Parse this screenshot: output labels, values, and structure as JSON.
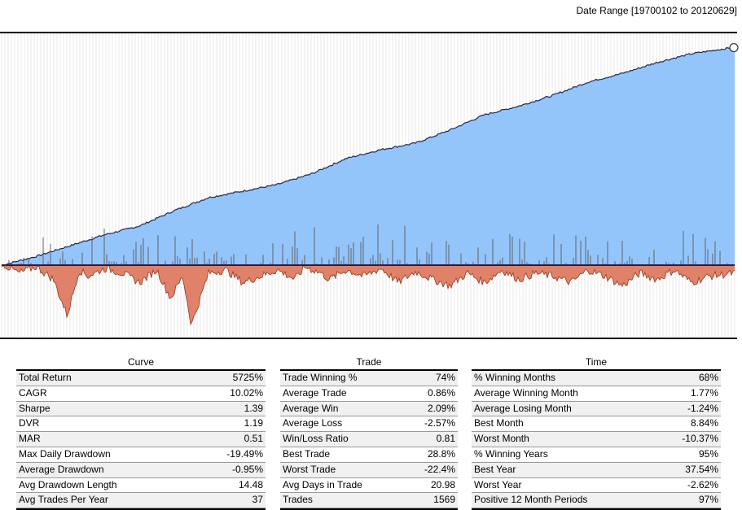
{
  "header": {
    "date_range": "Date Range [19700102 to 20120629]"
  },
  "chart_data": {
    "type": "area",
    "title": "",
    "x_start": "19700102",
    "x_end": "20120629",
    "grid": true,
    "colors": {
      "equity_fill": "#93c5fb",
      "equity_line": "#1a2a5a",
      "drawdown_fill": "#e0826a",
      "drawdown_line": "#8c3a22",
      "trade_bars": "#5a5a5a",
      "zero_line": "#2a1a4a",
      "grid_line": "#d8d8d8"
    },
    "equity_series": {
      "name": "Curve",
      "x_year": [
        1970,
        1972,
        1974,
        1976,
        1978,
        1980,
        1982,
        1984,
        1986,
        1988,
        1990,
        1992,
        1994,
        1996,
        1998,
        2000,
        2002,
        2004,
        2006,
        2008,
        2010,
        2012.5
      ],
      "y_relative": [
        0,
        0.04,
        0.09,
        0.14,
        0.18,
        0.25,
        0.31,
        0.34,
        0.37,
        0.42,
        0.49,
        0.53,
        0.56,
        0.62,
        0.69,
        0.73,
        0.78,
        0.84,
        0.88,
        0.93,
        0.97,
        1.0
      ]
    },
    "drawdown_series": {
      "name": "Drawdown",
      "x_year": [
        1970,
        1971,
        1972,
        1973,
        1973.8,
        1974.5,
        1975,
        1976,
        1977,
        1978,
        1979,
        1979.8,
        1980.5,
        1981,
        1982,
        1983,
        1984,
        1985,
        1986,
        1987,
        1987.6,
        1988.5,
        1989,
        1990,
        1991,
        1992,
        1993,
        1994,
        1995,
        1996,
        1997,
        1998,
        1999,
        2000,
        2001,
        2002,
        2003,
        2004,
        2005,
        2006,
        2007,
        2008,
        2009,
        2010,
        2011,
        2012.5
      ],
      "y_pct": [
        0,
        -3,
        -1,
        -5,
        -16.5,
        -2,
        -4,
        -1.5,
        -3,
        -6,
        -2,
        -11,
        -4,
        -19.5,
        -3,
        -2,
        -6,
        -4,
        -2,
        -5,
        -1,
        -3,
        -5,
        -2,
        -4,
        -1.5,
        -6,
        -2.5,
        -5,
        -7,
        -3,
        -6,
        -2,
        -5,
        -3,
        -4,
        -6,
        -2,
        -4,
        -7,
        -3,
        -5,
        -2,
        -6,
        -4,
        -3
      ]
    },
    "ylim_drawdown": [
      -20,
      0
    ]
  },
  "tables": [
    {
      "title": "Curve",
      "rows": [
        {
          "label": "Total Return",
          "value": "5725%"
        },
        {
          "label": "CAGR",
          "value": "10.02%"
        },
        {
          "label": "Sharpe",
          "value": "1.39"
        },
        {
          "label": "DVR",
          "value": "1.19"
        },
        {
          "label": "MAR",
          "value": "0.51"
        },
        {
          "label": "Max Daily Drawdown",
          "value": "-19.49%"
        },
        {
          "label": "Average Drawdown",
          "value": "-0.95%"
        },
        {
          "label": "Avg Drawdown Length",
          "value": "14.48"
        },
        {
          "label": "Avg Trades Per Year",
          "value": "37"
        }
      ]
    },
    {
      "title": "Trade",
      "rows": [
        {
          "label": "Trade Winning %",
          "value": "74%"
        },
        {
          "label": "Average Trade",
          "value": "0.86%"
        },
        {
          "label": "Average Win",
          "value": "2.09%"
        },
        {
          "label": "Average Loss",
          "value": "-2.57%"
        },
        {
          "label": "Win/Loss Ratio",
          "value": "0.81"
        },
        {
          "label": "Best Trade",
          "value": "28.8%"
        },
        {
          "label": "Worst Trade",
          "value": "-22.4%"
        },
        {
          "label": "Avg Days in Trade",
          "value": "20.98"
        },
        {
          "label": "Trades",
          "value": "1569"
        }
      ]
    },
    {
      "title": "Time",
      "rows": [
        {
          "label": "% Winning Months",
          "value": "68%"
        },
        {
          "label": "Average Winning Month",
          "value": "1.77%"
        },
        {
          "label": "Average Losing Month",
          "value": "-1.24%"
        },
        {
          "label": "Best Month",
          "value": "8.84%"
        },
        {
          "label": "Worst Month",
          "value": "-10.37%"
        },
        {
          "label": "% Winning Years",
          "value": "95%"
        },
        {
          "label": "Best Year",
          "value": "37.54%"
        },
        {
          "label": "Worst Year",
          "value": "-2.62%"
        },
        {
          "label": "Positive 12 Month Periods",
          "value": "97%"
        }
      ]
    }
  ]
}
